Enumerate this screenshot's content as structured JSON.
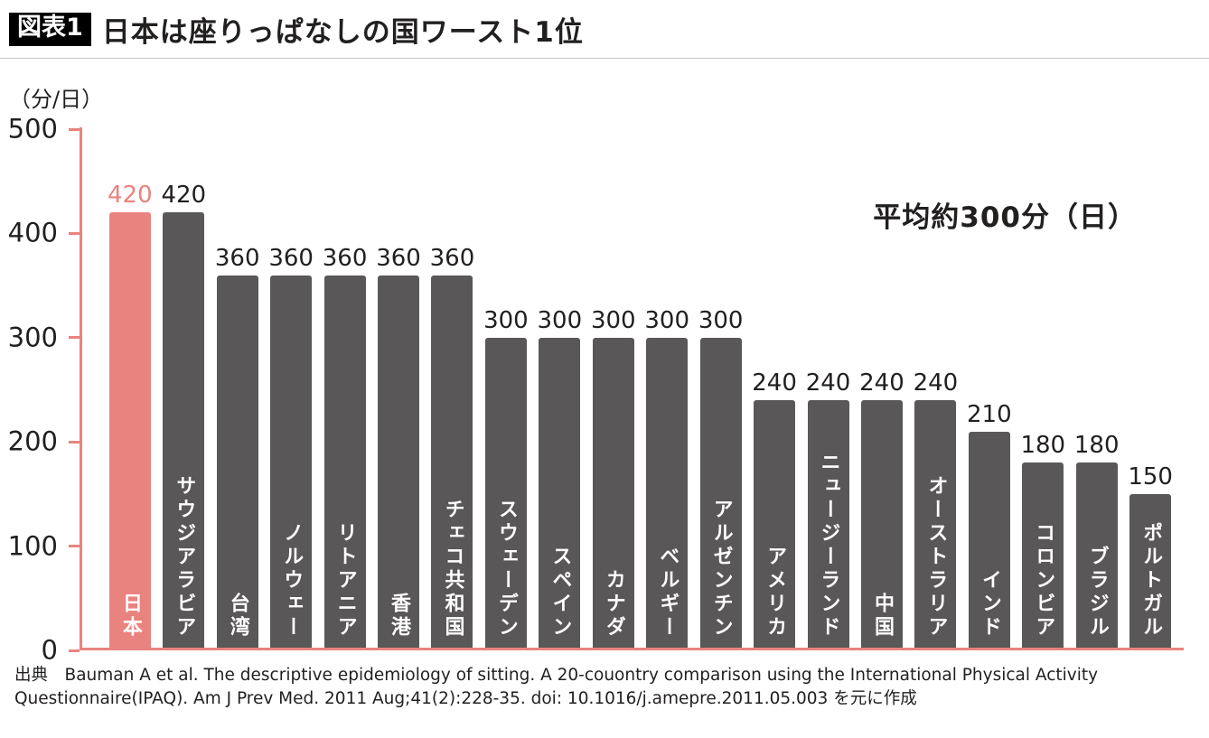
{
  "header": {
    "badge": "図表1",
    "title": "日本は座りっぱなしの国ワースト1位"
  },
  "chart_data": {
    "type": "bar",
    "title": "日本は座りっぱなしの国ワースト1位",
    "unit_label": "（分/日）",
    "categories": [
      "日本",
      "サウジアラビア",
      "台湾",
      "ノルウェー",
      "リトアニア",
      "香港",
      "チェコ共和国",
      "スウェーデン",
      "スペイン",
      "カナダ",
      "ベルギー",
      "アルゼンチン",
      "アメリカ",
      "ニュージーランド",
      "中国",
      "オーストラリア",
      "インド",
      "コロンビア",
      "ブラジル",
      "ポルトガル"
    ],
    "values": [
      420,
      420,
      360,
      360,
      360,
      360,
      360,
      300,
      300,
      300,
      300,
      300,
      240,
      240,
      240,
      240,
      210,
      180,
      180,
      150
    ],
    "highlight_index": 0,
    "annotation": "平均約300分（日）",
    "xlabel": "",
    "ylabel": "（分/日）",
    "ylim": [
      0,
      500
    ],
    "yticks": [
      0,
      100,
      200,
      300,
      400,
      500
    ],
    "grid": false,
    "legend": false,
    "colors": {
      "bar": "#595757",
      "highlight": "#e9837f",
      "axis": "#e9837f",
      "value_label": "#221f1f",
      "highlight_value_label": "#e9837f",
      "bar_text": "#ffffff"
    }
  },
  "footer": {
    "source": "出典　Bauman A et al. The descriptive epidemiology of sitting. A 20-couontry comparison using the International Physical Activity Questionnaire(IPAQ). Am J Prev Med. 2011 Aug;41(2):228-35. doi: 10.1016/j.amepre.2011.05.003  を元に作成"
  }
}
